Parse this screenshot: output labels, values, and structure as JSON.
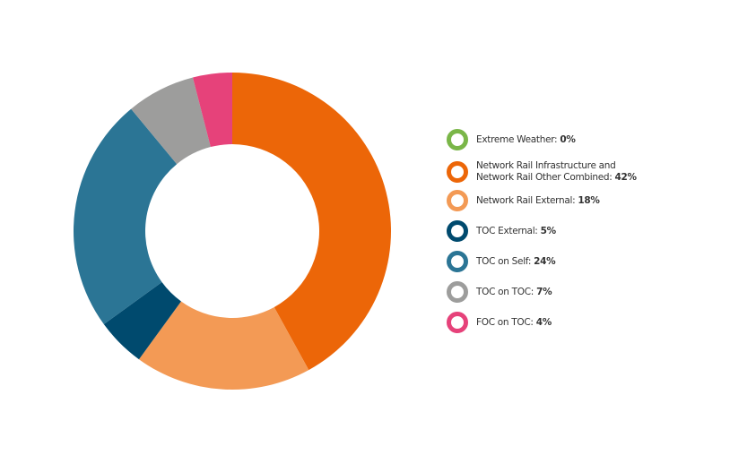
{
  "chart_data": {
    "type": "donut",
    "categories": [
      "Extreme Weather:",
      "Network Rail Infrastructure and Network Rail Other Combined:",
      "Network Rail External:",
      "TOC External:",
      "TOC on Self:",
      "TOC on TOC:",
      "FOC on TOC:"
    ],
    "values": [
      0,
      42,
      18,
      5,
      24,
      7,
      4
    ],
    "value_labels": [
      "0%",
      "42%",
      "18%",
      "5%",
      "24%",
      "7%",
      "4%"
    ],
    "colors": [
      "#7ab648",
      "#ec6608",
      "#f39a55",
      "#004a6e",
      "#2b7595",
      "#9d9d9c",
      "#e6427a"
    ]
  }
}
